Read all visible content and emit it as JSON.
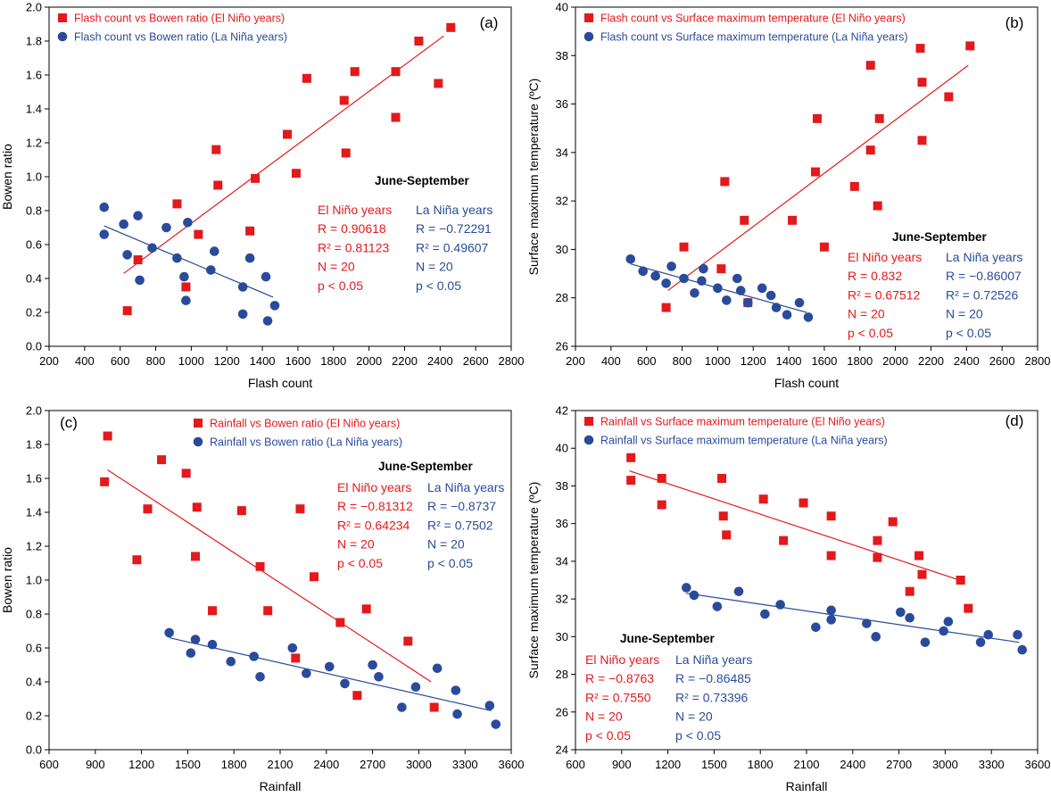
{
  "chart_data": [
    {
      "type": "scatter",
      "panel_label": "(a)",
      "xlabel": "Flash count",
      "ylabel": "Bowen ratio",
      "xlim": [
        200,
        2800
      ],
      "ylim": [
        0,
        2.0
      ],
      "xticks": [
        "200",
        "400",
        "600",
        "800",
        "1000",
        "1200",
        "1400",
        "1600",
        "1800",
        "2000",
        "2200",
        "2400",
        "2600",
        "2800"
      ],
      "yticks": [
        "0.0",
        "0.2",
        "0.4",
        "0.6",
        "0.8",
        "1.0",
        "1.2",
        "1.4",
        "1.6",
        "1.8",
        "2.0"
      ],
      "legend_position": "top-left",
      "series": [
        {
          "name": "Flash count vs Bowen ratio (El Niño years)",
          "color": "#e3191c",
          "marker": "square",
          "points": [
            [
              640,
              0.21
            ],
            [
              700,
              0.51
            ],
            [
              920,
              0.84
            ],
            [
              970,
              0.35
            ],
            [
              1040,
              0.66
            ],
            [
              1140,
              1.16
            ],
            [
              1150,
              0.95
            ],
            [
              1330,
              0.68
            ],
            [
              1360,
              0.99
            ],
            [
              1540,
              1.25
            ],
            [
              1590,
              1.02
            ],
            [
              1650,
              1.58
            ],
            [
              1860,
              1.45
            ],
            [
              1870,
              1.14
            ],
            [
              1920,
              1.62
            ],
            [
              2150,
              1.62
            ],
            [
              2150,
              1.35
            ],
            [
              2280,
              1.8
            ],
            [
              2390,
              1.55
            ],
            [
              2460,
              1.88
            ]
          ],
          "fit": [
            [
              620,
              0.43
            ],
            [
              2420,
              1.83
            ]
          ]
        },
        {
          "name": "Flash count vs Bowen ratio (La Niña years)",
          "color": "#2a4b9b",
          "marker": "circle",
          "points": [
            [
              510,
              0.82
            ],
            [
              510,
              0.66
            ],
            [
              620,
              0.72
            ],
            [
              640,
              0.54
            ],
            [
              700,
              0.77
            ],
            [
              710,
              0.39
            ],
            [
              780,
              0.58
            ],
            [
              860,
              0.7
            ],
            [
              920,
              0.52
            ],
            [
              960,
              0.41
            ],
            [
              970,
              0.27
            ],
            [
              980,
              0.73
            ],
            [
              1110,
              0.45
            ],
            [
              1130,
              0.56
            ],
            [
              1290,
              0.35
            ],
            [
              1290,
              0.19
            ],
            [
              1330,
              0.52
            ],
            [
              1420,
              0.41
            ],
            [
              1430,
              0.15
            ],
            [
              1470,
              0.24
            ]
          ],
          "fit": [
            [
              510,
              0.71
            ],
            [
              1460,
              0.29
            ]
          ]
        }
      ],
      "annotation": {
        "period": "June-September",
        "el_nino": {
          "title": "El Niño years",
          "r": "R = 0.90618",
          "r2": "R² = 0.81123",
          "n": "N = 20",
          "p": "p < 0.05"
        },
        "la_nina": {
          "title": "La Niña years",
          "r": "R = −0.72291",
          "r2": "R² = 0.49607",
          "n": "N = 20",
          "p": "p < 0.05"
        }
      }
    },
    {
      "type": "scatter",
      "panel_label": "(b)",
      "xlabel": "Flash count",
      "ylabel": "Surface maximum temperature (ºC)",
      "xlim": [
        200,
        2800
      ],
      "ylim": [
        26,
        40
      ],
      "xticks": [
        "200",
        "400",
        "600",
        "800",
        "1000",
        "1200",
        "1400",
        "1600",
        "1800",
        "2000",
        "2200",
        "2400",
        "2600",
        "2800"
      ],
      "yticks": [
        "26",
        "28",
        "30",
        "32",
        "34",
        "36",
        "38",
        "40"
      ],
      "legend_position": "top-left",
      "series": [
        {
          "name": "Flash count vs Surface maximum temperature (El Niño years)",
          "color": "#e3191c",
          "marker": "square",
          "points": [
            [
              710,
              27.6
            ],
            [
              810,
              30.1
            ],
            [
              1020,
              29.2
            ],
            [
              1040,
              32.8
            ],
            [
              1150,
              31.2
            ],
            [
              1170,
              27.8
            ],
            [
              1420,
              31.2
            ],
            [
              1550,
              33.2
            ],
            [
              1560,
              35.4
            ],
            [
              1600,
              30.1
            ],
            [
              1770,
              32.6
            ],
            [
              1860,
              37.6
            ],
            [
              1860,
              34.1
            ],
            [
              1900,
              31.8
            ],
            [
              1910,
              35.4
            ],
            [
              2140,
              38.3
            ],
            [
              2150,
              36.9
            ],
            [
              2150,
              34.5
            ],
            [
              2300,
              36.3
            ],
            [
              2420,
              38.4
            ]
          ],
          "fit": [
            [
              720,
              28.3
            ],
            [
              2410,
              37.6
            ]
          ]
        },
        {
          "name": "Flash count vs Surface maximum temperature (La Niña years)",
          "color": "#2a4b9b",
          "marker": "circle",
          "points": [
            [
              510,
              29.6
            ],
            [
              580,
              29.1
            ],
            [
              650,
              28.9
            ],
            [
              710,
              28.6
            ],
            [
              740,
              29.3
            ],
            [
              810,
              28.8
            ],
            [
              870,
              28.2
            ],
            [
              910,
              28.7
            ],
            [
              920,
              29.2
            ],
            [
              1000,
              28.4
            ],
            [
              1050,
              27.9
            ],
            [
              1110,
              28.8
            ],
            [
              1130,
              28.3
            ],
            [
              1170,
              27.8
            ],
            [
              1250,
              28.4
            ],
            [
              1300,
              28.1
            ],
            [
              1330,
              27.6
            ],
            [
              1390,
              27.3
            ],
            [
              1460,
              27.8
            ],
            [
              1510,
              27.2
            ]
          ],
          "fit": [
            [
              510,
              29.4
            ],
            [
              1500,
              27.4
            ]
          ]
        }
      ],
      "annotation": {
        "period": "June-September",
        "el_nino": {
          "title": "El Niño years",
          "r": "R = 0.832",
          "r2": "R² = 0.67512",
          "n": "N = 20",
          "p": "p < 0.05"
        },
        "la_nina": {
          "title": "La Niña years",
          "r": "R = −0.86007",
          "r2": "R² = 0.72526",
          "n": "N = 20",
          "p": "p < 0.05"
        }
      }
    },
    {
      "type": "scatter",
      "panel_label": "(c)",
      "xlabel": "Rainfall",
      "ylabel": "Bowen ratio",
      "xlim": [
        600,
        3600
      ],
      "ylim": [
        0,
        2.0
      ],
      "xticks": [
        "600",
        "900",
        "1200",
        "1500",
        "1800",
        "2100",
        "2400",
        "2700",
        "3000",
        "3300",
        "3600"
      ],
      "yticks": [
        "0.0",
        "0.2",
        "0.4",
        "0.6",
        "0.8",
        "1.0",
        "1.2",
        "1.4",
        "1.6",
        "1.8",
        "2.0"
      ],
      "legend_position": "top-center",
      "series": [
        {
          "name": "Rainfall vs Bowen ratio (El Niño years)",
          "color": "#e3191c",
          "marker": "square",
          "points": [
            [
              960,
              1.58
            ],
            [
              980,
              1.85
            ],
            [
              1170,
              1.12
            ],
            [
              1240,
              1.42
            ],
            [
              1330,
              1.71
            ],
            [
              1490,
              1.63
            ],
            [
              1550,
              1.14
            ],
            [
              1560,
              1.43
            ],
            [
              1660,
              0.82
            ],
            [
              1850,
              1.41
            ],
            [
              1970,
              1.08
            ],
            [
              2020,
              0.82
            ],
            [
              2200,
              0.54
            ],
            [
              2230,
              1.42
            ],
            [
              2320,
              1.02
            ],
            [
              2490,
              0.75
            ],
            [
              2600,
              0.32
            ],
            [
              2660,
              0.83
            ],
            [
              2930,
              0.64
            ],
            [
              3100,
              0.25
            ]
          ],
          "fit": [
            [
              980,
              1.65
            ],
            [
              3080,
              0.4
            ]
          ]
        },
        {
          "name": "Rainfall vs Bowen ratio (La Niña years)",
          "color": "#2a4b9b",
          "marker": "circle",
          "points": [
            [
              1380,
              0.69
            ],
            [
              1520,
              0.57
            ],
            [
              1550,
              0.65
            ],
            [
              1660,
              0.62
            ],
            [
              1780,
              0.52
            ],
            [
              1930,
              0.55
            ],
            [
              1970,
              0.43
            ],
            [
              2180,
              0.6
            ],
            [
              2270,
              0.45
            ],
            [
              2420,
              0.49
            ],
            [
              2520,
              0.39
            ],
            [
              2700,
              0.5
            ],
            [
              2740,
              0.43
            ],
            [
              2890,
              0.25
            ],
            [
              2980,
              0.37
            ],
            [
              3120,
              0.48
            ],
            [
              3240,
              0.35
            ],
            [
              3250,
              0.21
            ],
            [
              3460,
              0.26
            ],
            [
              3500,
              0.15
            ]
          ],
          "fit": [
            [
              1380,
              0.66
            ],
            [
              3470,
              0.23
            ]
          ]
        }
      ],
      "annotation": {
        "period": "June-September",
        "el_nino": {
          "title": "El Niño years",
          "r": "R = −0.81312",
          "r2": "R² = 0.64234",
          "n": "N = 20",
          "p": "p < 0.05"
        },
        "la_nina": {
          "title": "La Niña years",
          "r": "R = −0.8737",
          "r2": "R² = 0.7502",
          "n": "N = 20",
          "p": "p < 0.05"
        }
      }
    },
    {
      "type": "scatter",
      "panel_label": "(d)",
      "xlabel": "Rainfall",
      "ylabel": "Surface maximum temperature (ºC)",
      "xlim": [
        600,
        3600
      ],
      "ylim": [
        24,
        42
      ],
      "xticks": [
        "600",
        "900",
        "1200",
        "1500",
        "1800",
        "2100",
        "2400",
        "2700",
        "3000",
        "3300",
        "3600"
      ],
      "yticks": [
        "24",
        "26",
        "28",
        "30",
        "32",
        "34",
        "36",
        "38",
        "40",
        "42"
      ],
      "legend_position": "top-left",
      "series": [
        {
          "name": "Rainfall vs Surface maximum temperature (El Niño years)",
          "color": "#e3191c",
          "marker": "square",
          "points": [
            [
              960,
              39.5
            ],
            [
              960,
              38.3
            ],
            [
              1160,
              38.4
            ],
            [
              1160,
              37.0
            ],
            [
              1550,
              38.4
            ],
            [
              1560,
              36.4
            ],
            [
              1580,
              35.4
            ],
            [
              1820,
              37.3
            ],
            [
              1950,
              35.1
            ],
            [
              2080,
              37.1
            ],
            [
              2260,
              36.4
            ],
            [
              2260,
              34.3
            ],
            [
              2560,
              35.1
            ],
            [
              2560,
              34.2
            ],
            [
              2660,
              36.1
            ],
            [
              2770,
              32.4
            ],
            [
              2830,
              34.3
            ],
            [
              2850,
              33.3
            ],
            [
              3100,
              33.0
            ],
            [
              3150,
              31.5
            ]
          ],
          "fit": [
            [
              950,
              38.8
            ],
            [
              3130,
              32.9
            ]
          ]
        },
        {
          "name": "Rainfall vs Surface maximum temperature (La Niña years)",
          "color": "#2a4b9b",
          "marker": "circle",
          "points": [
            [
              1320,
              32.6
            ],
            [
              1370,
              32.2
            ],
            [
              1520,
              31.6
            ],
            [
              1660,
              32.4
            ],
            [
              1830,
              31.2
            ],
            [
              1930,
              31.7
            ],
            [
              2160,
              30.5
            ],
            [
              2260,
              31.4
            ],
            [
              2260,
              30.9
            ],
            [
              2490,
              30.7
            ],
            [
              2550,
              30.0
            ],
            [
              2710,
              31.3
            ],
            [
              2770,
              31.0
            ],
            [
              2870,
              29.7
            ],
            [
              2990,
              30.3
            ],
            [
              3020,
              30.8
            ],
            [
              3230,
              29.7
            ],
            [
              3280,
              30.1
            ],
            [
              3470,
              30.1
            ],
            [
              3500,
              29.3
            ]
          ],
          "fit": [
            [
              1320,
              32.3
            ],
            [
              3480,
              29.7
            ]
          ]
        }
      ],
      "annotation": {
        "period": "June-September",
        "el_nino": {
          "title": "El Niño years",
          "r": "R = −0.8763",
          "r2": "R² = 0.7550",
          "n": "N = 20",
          "p": "p < 0.05"
        },
        "la_nina": {
          "title": "La Niña years",
          "r": "R = −0.86485",
          "r2": "R² = 0.73396",
          "n": "N = 20",
          "p": "p < 0.05"
        }
      }
    }
  ]
}
